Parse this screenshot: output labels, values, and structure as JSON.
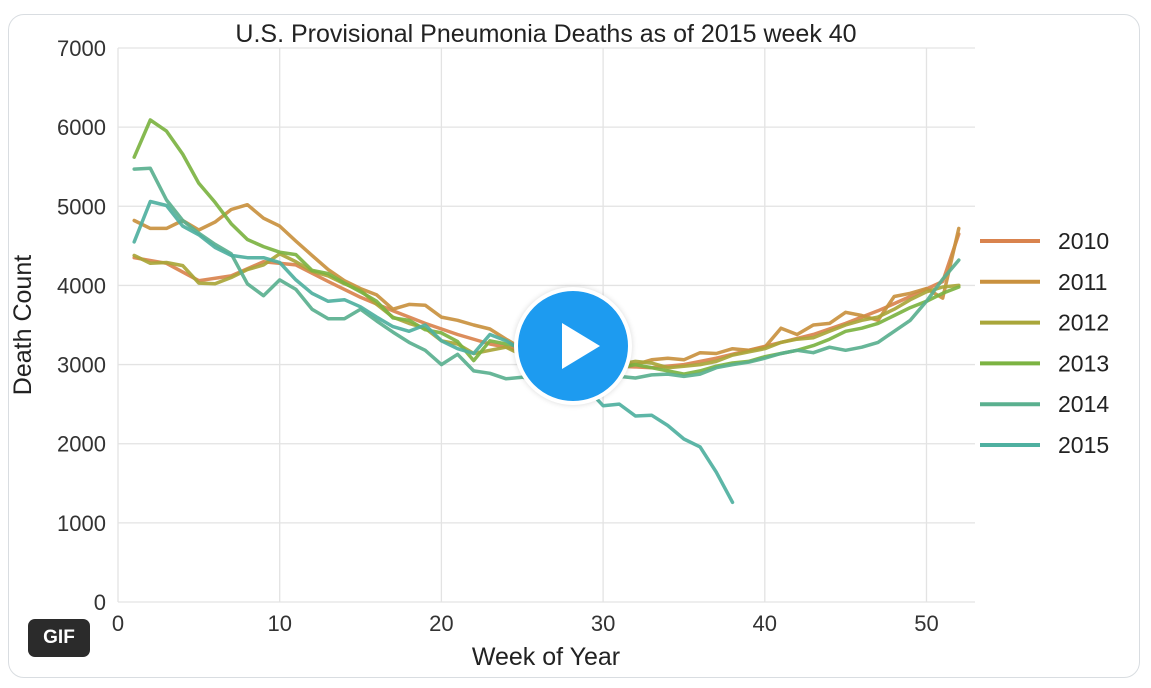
{
  "media": {
    "badge_label": "GIF",
    "play_icon": "play-icon"
  },
  "chart_data": {
    "type": "line",
    "title": "U.S. Provisional Pneumonia Deaths as of 2015 week 40",
    "xlabel": "Week of Year",
    "ylabel": "Death Count",
    "xlim": [
      0,
      53
    ],
    "ylim": [
      0,
      7000
    ],
    "xticks": [
      0,
      10,
      20,
      30,
      40,
      50
    ],
    "yticks": [
      0,
      1000,
      2000,
      3000,
      4000,
      5000,
      6000,
      7000
    ],
    "grid": true,
    "legend_position": "right",
    "series": [
      {
        "name": "2010",
        "color": "#d9834e",
        "x": [
          1,
          3,
          5,
          7,
          9,
          11,
          13,
          15,
          17,
          19,
          21,
          23,
          25,
          27,
          29,
          31,
          33,
          35,
          37,
          39,
          41,
          43,
          45,
          47,
          49,
          51,
          52
        ],
        "y": [
          4350,
          4280,
          4060,
          4120,
          4300,
          4260,
          4050,
          3850,
          3680,
          3520,
          3380,
          3260,
          3180,
          3080,
          3020,
          2980,
          2960,
          3000,
          3080,
          3180,
          3280,
          3380,
          3520,
          3680,
          3860,
          4050,
          4650
        ]
      },
      {
        "name": "2011",
        "color": "#c9913f",
        "x": [
          1,
          2,
          3,
          4,
          5,
          6,
          7,
          8,
          9,
          10,
          11,
          12,
          13,
          14,
          15,
          16,
          17,
          18,
          19,
          20,
          21,
          22,
          23,
          24,
          25,
          26,
          27,
          28,
          29,
          30,
          31,
          32,
          33,
          34,
          35,
          36,
          37,
          38,
          39,
          40,
          41,
          42,
          43,
          44,
          45,
          46,
          47,
          48,
          49,
          50,
          51,
          52
        ],
        "y": [
          4820,
          4720,
          4720,
          4820,
          4700,
          4800,
          4960,
          5020,
          4850,
          4750,
          4560,
          4380,
          4200,
          4060,
          3960,
          3880,
          3700,
          3760,
          3750,
          3600,
          3560,
          3500,
          3450,
          3320,
          3200,
          3100,
          3080,
          3000,
          2960,
          2980,
          3020,
          3000,
          3060,
          3080,
          3060,
          3150,
          3140,
          3200,
          3180,
          3220,
          3460,
          3380,
          3500,
          3520,
          3660,
          3620,
          3560,
          3860,
          3900,
          3960,
          3840,
          4720
        ]
      },
      {
        "name": "2012",
        "color": "#a9a63a",
        "x": [
          1,
          2,
          3,
          4,
          5,
          6,
          7,
          8,
          9,
          10,
          11,
          12,
          13,
          14,
          15,
          16,
          17,
          18,
          19,
          20,
          21,
          22,
          23,
          24,
          25,
          26,
          27,
          28,
          29,
          30,
          31,
          32,
          33,
          34,
          35,
          36,
          37,
          38,
          39,
          40,
          41,
          42,
          43,
          44,
          45,
          46,
          47,
          48,
          49,
          50,
          51,
          52
        ],
        "y": [
          4380,
          4280,
          4290,
          4250,
          4030,
          4020,
          4100,
          4200,
          4260,
          4400,
          4300,
          4180,
          4120,
          4020,
          3940,
          3760,
          3600,
          3520,
          3460,
          3300,
          3260,
          3140,
          3180,
          3220,
          3120,
          3040,
          3020,
          3000,
          2980,
          2960,
          3000,
          3040,
          3020,
          2960,
          2980,
          3000,
          3040,
          3120,
          3160,
          3200,
          3280,
          3320,
          3340,
          3420,
          3500,
          3560,
          3600,
          3700,
          3820,
          3920,
          3980,
          4000
        ]
      },
      {
        "name": "2013",
        "color": "#7cb342",
        "x": [
          1,
          2,
          3,
          4,
          5,
          6,
          7,
          8,
          9,
          10,
          11,
          12,
          13,
          14,
          15,
          16,
          17,
          18,
          19,
          20,
          21,
          22,
          23,
          24,
          25,
          26,
          27,
          28,
          29,
          30,
          31,
          32,
          33,
          34,
          35,
          36,
          37,
          38,
          39,
          40,
          41,
          42,
          43,
          44,
          45,
          46,
          47,
          48,
          49,
          50,
          51,
          52
        ],
        "y": [
          5620,
          6090,
          5950,
          5660,
          5290,
          5050,
          4780,
          4580,
          4490,
          4420,
          4390,
          4190,
          4150,
          4030,
          3920,
          3800,
          3590,
          3560,
          3440,
          3400,
          3290,
          3050,
          3300,
          3260,
          3220,
          3120,
          3060,
          3020,
          3000,
          2980,
          2960,
          3000,
          2960,
          2920,
          2880,
          2920,
          2980,
          3020,
          3040,
          3100,
          3140,
          3180,
          3240,
          3320,
          3420,
          3460,
          3520,
          3620,
          3720,
          3800,
          3900,
          3980
        ]
      },
      {
        "name": "2014",
        "color": "#5ab08f",
        "x": [
          1,
          2,
          3,
          4,
          5,
          6,
          7,
          8,
          9,
          10,
          11,
          12,
          13,
          14,
          15,
          16,
          17,
          18,
          19,
          20,
          21,
          22,
          23,
          24,
          25,
          26,
          27,
          28,
          29,
          30,
          31,
          32,
          33,
          34,
          35,
          36,
          37,
          38,
          39,
          40,
          41,
          42,
          43,
          44,
          45,
          46,
          47,
          48,
          49,
          50,
          51,
          52
        ],
        "y": [
          5470,
          5480,
          5080,
          4820,
          4660,
          4520,
          4400,
          4020,
          3870,
          4070,
          3950,
          3700,
          3580,
          3580,
          3700,
          3550,
          3410,
          3280,
          3180,
          3000,
          3130,
          2920,
          2890,
          2820,
          2840,
          2800,
          2780,
          2790,
          2800,
          2830,
          2850,
          2830,
          2870,
          2880,
          2850,
          2880,
          2960,
          3000,
          3030,
          3080,
          3140,
          3180,
          3150,
          3220,
          3180,
          3220,
          3280,
          3420,
          3560,
          3800,
          4080,
          4320
        ]
      },
      {
        "name": "2015",
        "color": "#4fb0a0",
        "x": [
          1,
          2,
          3,
          4,
          5,
          6,
          7,
          8,
          9,
          10,
          11,
          12,
          13,
          14,
          15,
          16,
          17,
          18,
          19,
          20,
          21,
          22,
          23,
          24,
          25,
          26,
          27,
          28,
          29,
          30,
          31,
          32,
          33,
          34,
          35,
          36,
          37,
          38
        ],
        "y": [
          4550,
          5060,
          5010,
          4750,
          4640,
          4480,
          4380,
          4350,
          4350,
          4290,
          4070,
          3900,
          3800,
          3820,
          3730,
          3600,
          3480,
          3420,
          3500,
          3300,
          3200,
          3140,
          3380,
          3300,
          3180,
          3050,
          3000,
          2920,
          2700,
          2480,
          2500,
          2350,
          2360,
          2230,
          2060,
          1960,
          1640,
          1260
        ]
      }
    ]
  }
}
